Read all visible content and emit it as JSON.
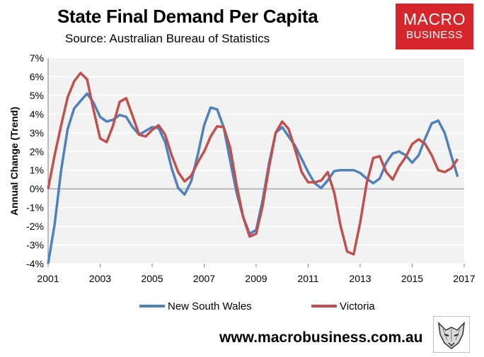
{
  "header": {
    "title": "State Final Demand Per Capita",
    "subtitle": "Source: Australian Bureau of Statistics"
  },
  "logo": {
    "line1": "MACRO",
    "line2": "BUSINESS",
    "color": "#d7262b"
  },
  "footer": {
    "website": "www.macrobusiness.com.au",
    "icon": "wolf-icon"
  },
  "chart_data": {
    "type": "line",
    "ylabel": "Annual Change (Trend)",
    "xlabel": "",
    "ylim": [
      -4,
      7
    ],
    "xlim": [
      2001,
      2017
    ],
    "y_ticks": [
      -4,
      -3,
      -2,
      -1,
      0,
      1,
      2,
      3,
      4,
      5,
      6,
      7
    ],
    "y_tick_labels": [
      "-4%",
      "-3%",
      "-2%",
      "-1%",
      "0%",
      "1%",
      "2%",
      "3%",
      "4%",
      "5%",
      "6%",
      "7%"
    ],
    "x_ticks": [
      2001,
      2003,
      2005,
      2007,
      2009,
      2011,
      2013,
      2015,
      2017
    ],
    "x_tick_labels": [
      "2001",
      "2003",
      "2005",
      "2007",
      "2009",
      "2011",
      "2013",
      "2015",
      "2017"
    ],
    "grid": "horizontal",
    "plot_background": "#f2f2f2",
    "legend_position": "bottom",
    "series": [
      {
        "name": "New South Wales",
        "color": "#4f81bd",
        "points": [
          [
            2001.0,
            -4.0
          ],
          [
            2001.25,
            -1.9
          ],
          [
            2001.5,
            1.0
          ],
          [
            2001.75,
            3.2
          ],
          [
            2002.0,
            4.3
          ],
          [
            2002.25,
            4.7
          ],
          [
            2002.5,
            5.1
          ],
          [
            2002.75,
            4.6
          ],
          [
            2003.0,
            3.85
          ],
          [
            2003.25,
            3.6
          ],
          [
            2003.5,
            3.7
          ],
          [
            2003.75,
            3.95
          ],
          [
            2004.0,
            3.85
          ],
          [
            2004.25,
            3.3
          ],
          [
            2004.5,
            2.9
          ],
          [
            2004.75,
            3.1
          ],
          [
            2005.0,
            3.3
          ],
          [
            2005.25,
            3.25
          ],
          [
            2005.5,
            2.5
          ],
          [
            2005.75,
            1.1
          ],
          [
            2006.0,
            0.05
          ],
          [
            2006.25,
            -0.3
          ],
          [
            2006.5,
            0.4
          ],
          [
            2006.75,
            1.8
          ],
          [
            2007.0,
            3.4
          ],
          [
            2007.25,
            4.35
          ],
          [
            2007.5,
            4.25
          ],
          [
            2007.75,
            3.3
          ],
          [
            2008.0,
            1.5
          ],
          [
            2008.25,
            -0.2
          ],
          [
            2008.5,
            -1.5
          ],
          [
            2008.75,
            -2.4
          ],
          [
            2009.0,
            -2.2
          ],
          [
            2009.25,
            -0.6
          ],
          [
            2009.5,
            1.4
          ],
          [
            2009.75,
            3.0
          ],
          [
            2010.0,
            3.3
          ],
          [
            2010.25,
            2.8
          ],
          [
            2010.5,
            2.3
          ],
          [
            2010.75,
            1.6
          ],
          [
            2011.0,
            0.9
          ],
          [
            2011.25,
            0.3
          ],
          [
            2011.5,
            0.05
          ],
          [
            2011.75,
            0.45
          ],
          [
            2012.0,
            0.95
          ],
          [
            2012.25,
            1.0
          ],
          [
            2012.5,
            1.0
          ],
          [
            2012.75,
            1.0
          ],
          [
            2013.0,
            0.85
          ],
          [
            2013.25,
            0.55
          ],
          [
            2013.5,
            0.3
          ],
          [
            2013.75,
            0.55
          ],
          [
            2014.0,
            1.4
          ],
          [
            2014.25,
            1.9
          ],
          [
            2014.5,
            2.0
          ],
          [
            2014.75,
            1.8
          ],
          [
            2015.0,
            1.4
          ],
          [
            2015.25,
            1.8
          ],
          [
            2015.5,
            2.7
          ],
          [
            2015.75,
            3.5
          ],
          [
            2016.0,
            3.65
          ],
          [
            2016.25,
            3.0
          ],
          [
            2016.5,
            1.8
          ],
          [
            2016.75,
            0.65
          ]
        ]
      },
      {
        "name": "Victoria",
        "color": "#c0504d",
        "points": [
          [
            2001.0,
            0.0
          ],
          [
            2001.25,
            1.8
          ],
          [
            2001.5,
            3.4
          ],
          [
            2001.75,
            4.9
          ],
          [
            2002.0,
            5.75
          ],
          [
            2002.25,
            6.2
          ],
          [
            2002.5,
            5.85
          ],
          [
            2002.75,
            4.2
          ],
          [
            2003.0,
            2.7
          ],
          [
            2003.25,
            2.5
          ],
          [
            2003.5,
            3.4
          ],
          [
            2003.75,
            4.65
          ],
          [
            2004.0,
            4.85
          ],
          [
            2004.25,
            3.9
          ],
          [
            2004.5,
            2.9
          ],
          [
            2004.75,
            2.8
          ],
          [
            2005.0,
            3.15
          ],
          [
            2005.25,
            3.4
          ],
          [
            2005.5,
            2.9
          ],
          [
            2005.75,
            1.8
          ],
          [
            2006.0,
            0.9
          ],
          [
            2006.25,
            0.4
          ],
          [
            2006.5,
            0.7
          ],
          [
            2006.75,
            1.4
          ],
          [
            2007.0,
            2.0
          ],
          [
            2007.25,
            2.8
          ],
          [
            2007.5,
            3.35
          ],
          [
            2007.75,
            3.3
          ],
          [
            2008.0,
            2.2
          ],
          [
            2008.25,
            0.2
          ],
          [
            2008.5,
            -1.5
          ],
          [
            2008.75,
            -2.55
          ],
          [
            2009.0,
            -2.4
          ],
          [
            2009.25,
            -0.9
          ],
          [
            2009.5,
            1.2
          ],
          [
            2009.75,
            3.0
          ],
          [
            2010.0,
            3.6
          ],
          [
            2010.25,
            3.2
          ],
          [
            2010.5,
            2.1
          ],
          [
            2010.75,
            0.9
          ],
          [
            2011.0,
            0.35
          ],
          [
            2011.25,
            0.35
          ],
          [
            2011.5,
            0.45
          ],
          [
            2011.75,
            0.9
          ],
          [
            2012.0,
            -0.2
          ],
          [
            2012.25,
            -2.0
          ],
          [
            2012.5,
            -3.35
          ],
          [
            2012.75,
            -3.5
          ],
          [
            2013.0,
            -1.8
          ],
          [
            2013.25,
            0.3
          ],
          [
            2013.5,
            1.65
          ],
          [
            2013.75,
            1.75
          ],
          [
            2014.0,
            0.9
          ],
          [
            2014.25,
            0.5
          ],
          [
            2014.5,
            1.2
          ],
          [
            2014.75,
            1.7
          ],
          [
            2015.0,
            2.4
          ],
          [
            2015.25,
            2.65
          ],
          [
            2015.5,
            2.4
          ],
          [
            2015.75,
            1.8
          ],
          [
            2016.0,
            1.0
          ],
          [
            2016.25,
            0.9
          ],
          [
            2016.5,
            1.1
          ],
          [
            2016.75,
            1.6
          ]
        ]
      }
    ]
  }
}
